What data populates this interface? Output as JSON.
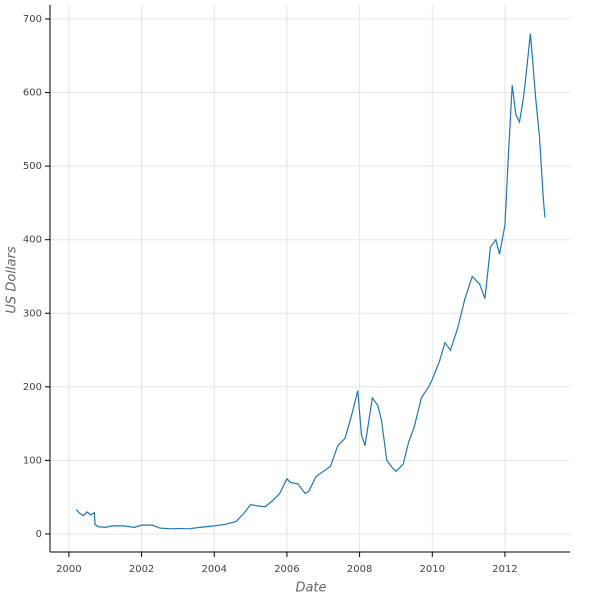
{
  "chart_data": {
    "type": "line",
    "x_label": "Date",
    "y_label": "US Dollars",
    "x": [
      2000.2,
      2000.3,
      2000.4,
      2000.5,
      2000.6,
      2000.7,
      2000.72,
      2000.8,
      2001.0,
      2001.2,
      2001.5,
      2001.8,
      2002.0,
      2002.3,
      2002.5,
      2002.8,
      2003.0,
      2003.3,
      2003.6,
      2004.0,
      2004.3,
      2004.6,
      2004.8,
      2005.0,
      2005.2,
      2005.4,
      2005.6,
      2005.8,
      2006.0,
      2006.1,
      2006.3,
      2006.5,
      2006.6,
      2006.8,
      2007.0,
      2007.2,
      2007.4,
      2007.6,
      2007.8,
      2007.95,
      2008.05,
      2008.15,
      2008.35,
      2008.5,
      2008.6,
      2008.75,
      2008.9,
      2009.0,
      2009.2,
      2009.35,
      2009.5,
      2009.7,
      2009.9,
      2010.0,
      2010.2,
      2010.35,
      2010.5,
      2010.7,
      2010.9,
      2011.1,
      2011.3,
      2011.45,
      2011.6,
      2011.75,
      2011.85,
      2012.0,
      2012.1,
      2012.2,
      2012.3,
      2012.4,
      2012.5,
      2012.55,
      2012.7,
      2012.75,
      2012.85,
      2012.95,
      2013.0,
      2013.05,
      2013.1
    ],
    "series": [
      {
        "color": "#1f77b4",
        "values": [
          33,
          28,
          25,
          30,
          26,
          29,
          13,
          10,
          9,
          11,
          11,
          9,
          12,
          12,
          8,
          7,
          7.5,
          7,
          9,
          11,
          13,
          17,
          27,
          40,
          38,
          37,
          45,
          55,
          75,
          70,
          68,
          55,
          58,
          78,
          85,
          92,
          120,
          130,
          165,
          195,
          135,
          120,
          185,
          175,
          155,
          100,
          90,
          85,
          95,
          125,
          145,
          185,
          200,
          210,
          235,
          260,
          250,
          280,
          320,
          350,
          340,
          320,
          390,
          400,
          380,
          420,
          520,
          610,
          570,
          560,
          590,
          610,
          680,
          650,
          590,
          540,
          500,
          460,
          430
        ]
      }
    ],
    "xlim": [
      1999.48,
      2013.79
    ],
    "ylim": [
      -24.5,
      719
    ],
    "xticks": [
      2000,
      2002,
      2004,
      2006,
      2008,
      2010,
      2012
    ],
    "yticks": [
      0,
      100,
      200,
      300,
      400,
      500,
      600,
      700
    ],
    "grid": true
  }
}
